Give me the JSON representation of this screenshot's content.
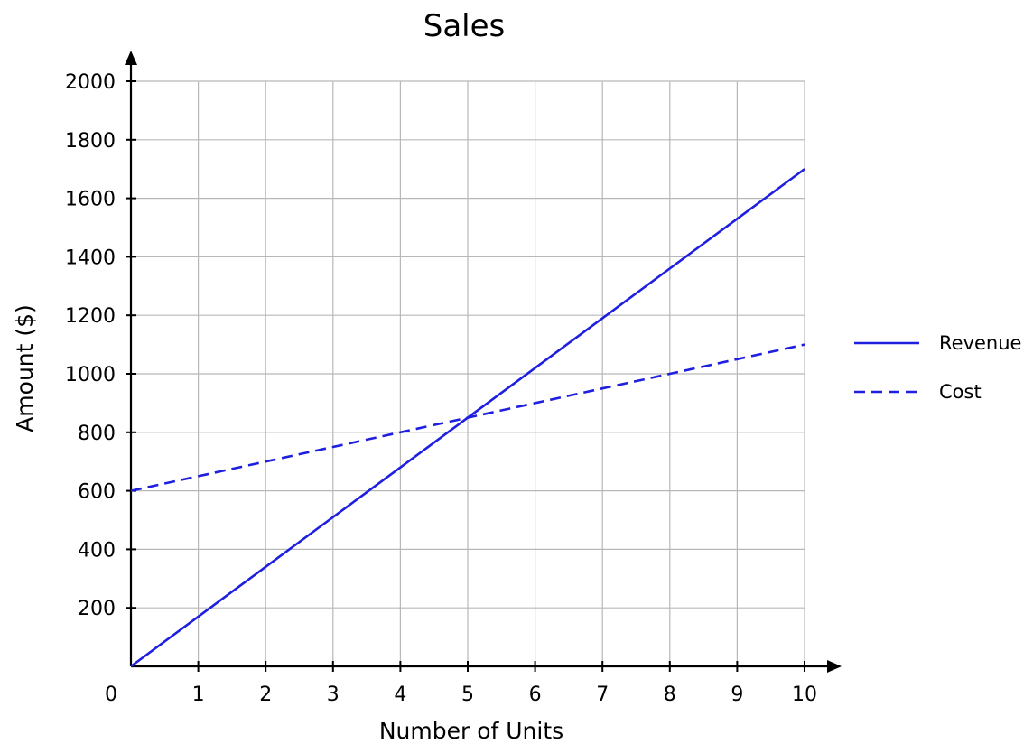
{
  "chart_data": {
    "type": "line",
    "title": "Sales",
    "xlabel": "Number of Units",
    "ylabel": "Amount ($)",
    "x": [
      0,
      1,
      2,
      3,
      4,
      5,
      6,
      7,
      8,
      9,
      10
    ],
    "x_ticks": [
      "0",
      "1",
      "2",
      "3",
      "4",
      "5",
      "6",
      "7",
      "8",
      "9",
      "10"
    ],
    "y_ticks": [
      "200",
      "400",
      "600",
      "800",
      "1000",
      "1200",
      "1400",
      "1600",
      "1800",
      "2000"
    ],
    "xlim": [
      0,
      10
    ],
    "ylim": [
      0,
      2000
    ],
    "grid": true,
    "legend_position": "right",
    "series": [
      {
        "name": "Revenue",
        "style": "solid",
        "color": "#1f1fe0",
        "values": [
          0,
          170,
          340,
          510,
          680,
          850,
          1020,
          1190,
          1360,
          1530,
          1700
        ]
      },
      {
        "name": "Cost",
        "style": "dashed",
        "color": "#1f1fe0",
        "values": [
          600,
          650,
          700,
          750,
          800,
          850,
          900,
          950,
          1000,
          1050,
          1100
        ]
      }
    ]
  }
}
